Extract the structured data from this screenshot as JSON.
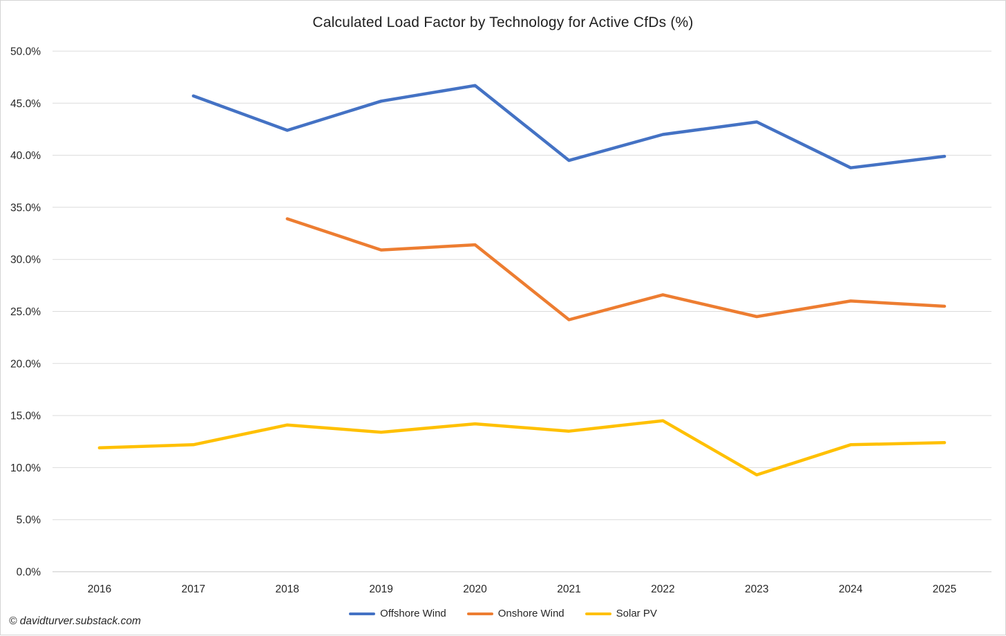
{
  "page": {
    "watermark": "© davidturver.substack.com"
  },
  "chart_data": {
    "type": "line",
    "title": "Calculated Load Factor by Technology for Active CfDs (%)",
    "categories": [
      "2016",
      "2017",
      "2018",
      "2019",
      "2020",
      "2021",
      "2022",
      "2023",
      "2024",
      "2025"
    ],
    "series": [
      {
        "name": "Offshore Wind",
        "color": "#4472C4",
        "values": [
          null,
          45.7,
          42.4,
          45.2,
          46.7,
          39.5,
          42.0,
          43.2,
          38.8,
          39.9
        ]
      },
      {
        "name": "Onshore Wind",
        "color": "#ED7D31",
        "values": [
          null,
          null,
          33.9,
          30.9,
          31.4,
          24.2,
          26.6,
          24.5,
          26.0,
          25.5
        ]
      },
      {
        "name": "Solar PV",
        "color": "#FFC000",
        "values": [
          11.9,
          12.2,
          14.1,
          13.4,
          14.2,
          13.5,
          14.5,
          9.3,
          12.2,
          12.4
        ]
      }
    ],
    "y_axis": {
      "min": 0,
      "max": 50,
      "step": 5,
      "tick_labels": [
        "0.0%",
        "5.0%",
        "10.0%",
        "15.0%",
        "20.0%",
        "25.0%",
        "30.0%",
        "35.0%",
        "40.0%",
        "45.0%",
        "50.0%"
      ]
    },
    "x_axis_label": "",
    "y_axis_label": "",
    "grid": true,
    "legend_position": "bottom",
    "style": {
      "gridline_color": "#DBDBDB",
      "axis_line_color": "#C4C4C4",
      "tick_text_color": "#262626",
      "line_width": 4.5
    }
  }
}
